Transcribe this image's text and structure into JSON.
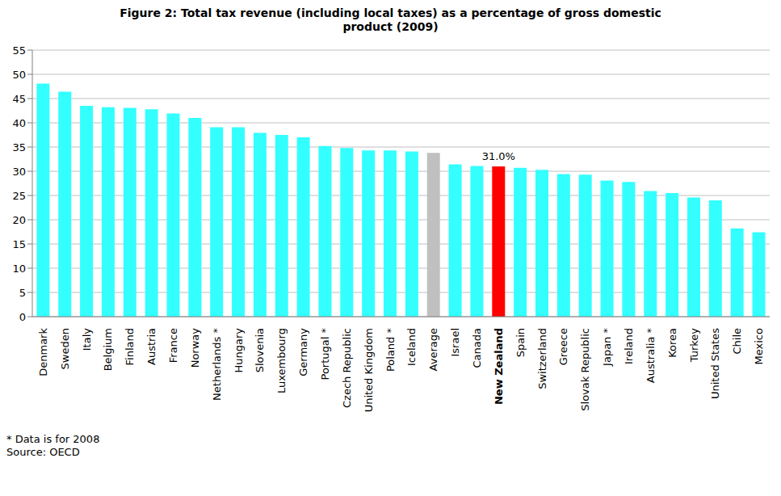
{
  "chart_data": {
    "type": "bar",
    "title": "Figure 2: Total tax revenue (including  local taxes) as a percentage of gross domestic product (2009)",
    "categories": [
      "Denmark",
      "Sweden",
      "Italy",
      "Belgium",
      "Finland",
      "Austria",
      "France",
      "Norway",
      "Netherlands *",
      "Hungary",
      "Slovenia",
      "Luxembourg",
      "Germany",
      "Portugal *",
      "Czech Republic",
      "United Kingdom",
      "Poland *",
      "Iceland",
      "Average",
      "Israel",
      "Canada",
      "New Zealand",
      "Spain",
      "Switzerland",
      "Greece",
      "Slovak Republic",
      "Japan *",
      "Ireland",
      "Australia *",
      "Korea",
      "Turkey",
      "United States",
      "Chile",
      "Mexico"
    ],
    "values": [
      48.1,
      46.4,
      43.5,
      43.2,
      43.1,
      42.8,
      41.9,
      41.0,
      39.1,
      39.1,
      37.9,
      37.5,
      37.0,
      35.2,
      34.8,
      34.3,
      34.3,
      34.1,
      33.8,
      31.4,
      31.1,
      31.0,
      30.7,
      30.3,
      29.4,
      29.3,
      28.1,
      27.8,
      25.9,
      25.5,
      24.6,
      24.0,
      18.2,
      17.4
    ],
    "colors": [
      "#33ffff",
      "#33ffff",
      "#33ffff",
      "#33ffff",
      "#33ffff",
      "#33ffff",
      "#33ffff",
      "#33ffff",
      "#33ffff",
      "#33ffff",
      "#33ffff",
      "#33ffff",
      "#33ffff",
      "#33ffff",
      "#33ffff",
      "#33ffff",
      "#33ffff",
      "#33ffff",
      "#c0c0c0",
      "#33ffff",
      "#33ffff",
      "#ff0000",
      "#33ffff",
      "#33ffff",
      "#33ffff",
      "#33ffff",
      "#33ffff",
      "#33ffff",
      "#33ffff",
      "#33ffff",
      "#33ffff",
      "#33ffff",
      "#33ffff",
      "#33ffff"
    ],
    "annotations": [
      {
        "category": "New Zealand",
        "text": "31.0%"
      }
    ],
    "ylim": [
      0,
      55
    ],
    "yticks": [
      0,
      5,
      10,
      15,
      20,
      25,
      30,
      35,
      40,
      45,
      50,
      55
    ],
    "grid": true,
    "notes": [
      "* Data is for 2008",
      "Source: OECD"
    ]
  }
}
